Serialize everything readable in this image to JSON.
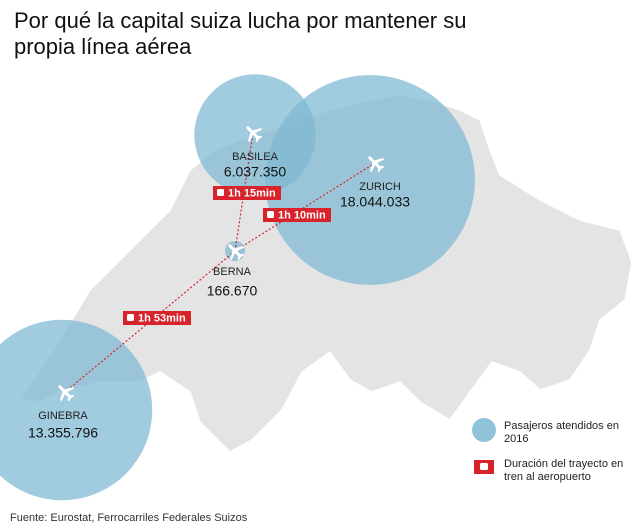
{
  "title": "Por qué la capital suiza lucha por mantener su propia línea aérea",
  "airports": [
    {
      "name": "BASILEA",
      "passengers": 6037350,
      "passengers_label": "6.037.350"
    },
    {
      "name": "ZURICH",
      "passengers": 18044033,
      "passengers_label": "18.044.033"
    },
    {
      "name": "BERNA",
      "passengers": 166670,
      "passengers_label": "166.670"
    },
    {
      "name": "GINEBRA",
      "passengers": 13355796,
      "passengers_label": "13.355.796"
    }
  ],
  "routes": [
    {
      "duration": "1h 15min"
    },
    {
      "duration": "1h 10min"
    },
    {
      "duration": "1h 53min"
    }
  ],
  "legend": {
    "circle": "Pasajeros atendidos en 2016",
    "train": "Duración del trayecto en tren al aeropuerto"
  },
  "source": "Fuente: Eurostat, Ferrocarriles Federales Suizos"
}
